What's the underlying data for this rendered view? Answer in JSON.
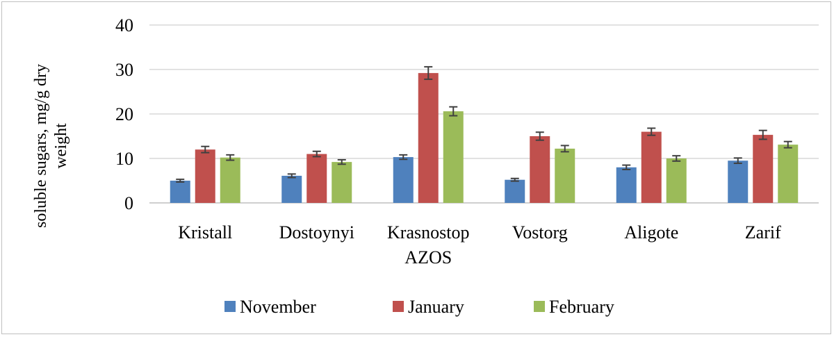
{
  "chart_data": {
    "type": "bar",
    "title": "",
    "xlabel": "",
    "ylabel_lines": [
      "soluble sugars, mg/g dry",
      "weight"
    ],
    "ylim": [
      0,
      40
    ],
    "yticks": [
      0,
      10,
      20,
      30,
      40
    ],
    "categories": [
      [
        "Kristall"
      ],
      [
        "Dostoynyi"
      ],
      [
        "Krasnostop",
        "AZOS"
      ],
      [
        "Vostorg"
      ],
      [
        "Aligote"
      ],
      [
        "Zarif"
      ]
    ],
    "series": [
      {
        "name": "November",
        "color": "#4f81bd",
        "values": [
          5.0,
          6.1,
          10.3,
          5.2,
          8.0,
          9.5
        ],
        "errors": [
          0.3,
          0.4,
          0.5,
          0.3,
          0.5,
          0.6
        ]
      },
      {
        "name": "January",
        "color": "#c0504d",
        "values": [
          12.0,
          11.0,
          29.2,
          15.0,
          16.0,
          15.3
        ],
        "errors": [
          0.7,
          0.6,
          1.4,
          0.9,
          0.8,
          1.0
        ]
      },
      {
        "name": "February",
        "color": "#9bbb59",
        "values": [
          10.2,
          9.2,
          20.6,
          12.2,
          10.0,
          13.1
        ],
        "errors": [
          0.6,
          0.5,
          1.0,
          0.7,
          0.6,
          0.7
        ]
      }
    ],
    "grid": true,
    "legend_position": "bottom",
    "gridline_color": "#d9d9d9",
    "axis_color": "#bfbfbf",
    "errorbar_color": "#404040"
  }
}
